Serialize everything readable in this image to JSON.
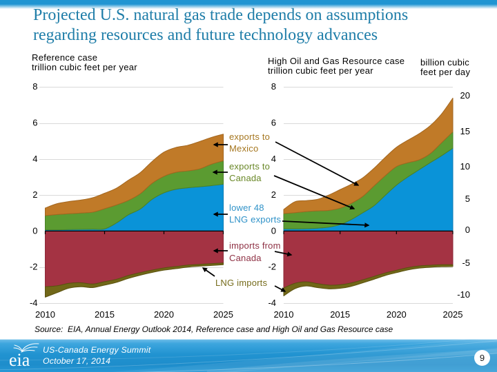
{
  "slide": {
    "title_line1": "Projected U.S. natural gas trade depends on assumptions",
    "title_line2": "regarding resources and future technology advances",
    "title_color": "#1e7da8",
    "top_bar_color": "#2095d2",
    "source_note": "Source:  EIA, Annual Energy Outlook 2014, Reference case and High Oil and Gas Resource case",
    "footer": {
      "logo_text": "eia",
      "event": "US-Canada Energy Summit",
      "date": "October 17, 2014",
      "page_number": "9",
      "background_color": "#1f90cf"
    }
  },
  "chart_data": [
    {
      "type": "area",
      "title": "Reference case",
      "unit_label": "trillion cubic feet per year",
      "x": [
        2010,
        2011,
        2012,
        2013,
        2014,
        2015,
        2016,
        2017,
        2018,
        2019,
        2020,
        2021,
        2022,
        2023,
        2024,
        2025
      ],
      "xticks": [
        2010,
        2015,
        2020,
        2025
      ],
      "yticks": [
        8,
        6,
        4,
        2,
        0,
        -2,
        -4
      ],
      "ylim": [
        -4,
        8
      ],
      "grid": true,
      "series": [
        {
          "name": "lower 48 LNG exports",
          "color": "#0a93d8",
          "stroke": "#0b7ab5",
          "values": [
            0.07,
            0.07,
            0.08,
            0.09,
            0.1,
            0.12,
            0.45,
            0.9,
            1.22,
            1.76,
            2.12,
            2.32,
            2.4,
            2.46,
            2.52,
            2.6
          ]
        },
        {
          "name": "exports to Canada",
          "color": "#5b9b31",
          "stroke": "#4a8126",
          "values": [
            0.79,
            0.85,
            0.88,
            0.91,
            0.95,
            1.12,
            1.0,
            0.8,
            0.85,
            0.89,
            0.92,
            0.94,
            0.94,
            0.99,
            1.19,
            1.3
          ]
        },
        {
          "name": "exports to Mexico",
          "color": "#c07a28",
          "stroke": "#a2661f",
          "values": [
            0.42,
            0.6,
            0.68,
            0.72,
            0.8,
            0.86,
            0.93,
            1.12,
            1.17,
            1.21,
            1.34,
            1.38,
            1.42,
            1.52,
            1.49,
            1.48
          ]
        },
        {
          "name": "imports from Canada",
          "color": "#a43343",
          "stroke": "#8c2a39",
          "values": [
            -3.09,
            -3.04,
            -2.9,
            -2.87,
            -2.94,
            -2.81,
            -2.68,
            -2.47,
            -2.31,
            -2.17,
            -2.05,
            -1.97,
            -1.89,
            -1.85,
            -1.81,
            -1.77
          ]
        },
        {
          "name": "LNG imports",
          "color": "#716718",
          "stroke": "#5a520f",
          "values": [
            -0.58,
            -0.38,
            -0.27,
            -0.22,
            -0.2,
            -0.19,
            -0.17,
            -0.16,
            -0.14,
            -0.13,
            -0.12,
            -0.12,
            -0.11,
            -0.1,
            -0.1,
            -0.1
          ]
        }
      ]
    },
    {
      "type": "area",
      "title": "High Oil and Gas Resource case",
      "unit_label": "trillion cubic feet per year",
      "right_axis": {
        "label_line1": "billion cubic",
        "label_line2": "feet per day",
        "ticks": [
          20,
          15,
          10,
          5,
          0,
          -5,
          -10
        ]
      },
      "x": [
        2010,
        2011,
        2012,
        2013,
        2014,
        2015,
        2016,
        2017,
        2018,
        2019,
        2020,
        2021,
        2022,
        2023,
        2024,
        2025
      ],
      "xticks": [
        2010,
        2015,
        2020,
        2025
      ],
      "yticks": [
        8,
        6,
        4,
        2,
        0,
        -2,
        -4
      ],
      "ylim": [
        -4,
        8
      ],
      "grid": true,
      "series": [
        {
          "name": "lower 48 LNG exports",
          "color": "#0a93d8",
          "stroke": "#0b7ab5",
          "values": [
            0.12,
            0.12,
            0.13,
            0.16,
            0.22,
            0.36,
            0.64,
            1.01,
            1.4,
            1.98,
            2.55,
            3.0,
            3.4,
            3.8,
            4.18,
            4.6
          ]
        },
        {
          "name": "exports to Canada",
          "color": "#5b9b31",
          "stroke": "#4a8126",
          "values": [
            0.85,
            0.9,
            0.95,
            0.96,
            0.93,
            0.91,
            0.9,
            0.91,
            1.1,
            1.09,
            1.03,
            0.79,
            0.55,
            0.5,
            0.72,
            0.91
          ]
        },
        {
          "name": "exports to Mexico",
          "color": "#c07a28",
          "stroke": "#a2661f",
          "values": [
            0.23,
            0.61,
            0.61,
            0.64,
            0.85,
            1.03,
            1.06,
            1.03,
            0.98,
            1.02,
            1.07,
            1.25,
            1.45,
            1.55,
            1.6,
            1.87
          ]
        },
        {
          "name": "imports from Canada",
          "color": "#a43343",
          "stroke": "#8c2a39",
          "values": [
            -3.16,
            -2.9,
            -2.82,
            -2.92,
            -3.0,
            -2.98,
            -2.88,
            -2.71,
            -2.52,
            -2.33,
            -2.18,
            -2.03,
            -1.94,
            -1.9,
            -1.87,
            -1.87
          ]
        },
        {
          "name": "LNG imports",
          "color": "#716718",
          "stroke": "#5a520f",
          "values": [
            -0.44,
            -0.3,
            -0.23,
            -0.22,
            -0.21,
            -0.2,
            -0.19,
            -0.17,
            -0.16,
            -0.14,
            -0.13,
            -0.13,
            -0.12,
            -0.11,
            -0.11,
            -0.1
          ]
        }
      ]
    }
  ],
  "annotations": [
    {
      "id": "mexico",
      "line1": "exports to",
      "line2": "Mexico",
      "color": "#a5761f"
    },
    {
      "id": "canada",
      "line1": "exports to",
      "line2": "Canada",
      "color": "#698727"
    },
    {
      "id": "lower48",
      "line1": "lower 48",
      "line2": "LNG exports",
      "color": "#2f92c8"
    },
    {
      "id": "imports",
      "line1": "imports from",
      "line2": "Canada",
      "color": "#8e3144"
    },
    {
      "id": "lng",
      "line1": "LNG imports",
      "line2": "",
      "color": "#766c1c"
    }
  ],
  "style": {
    "gridline_color": "#d9d9d9",
    "axis_color": "#000000",
    "arrow_color": "#000000"
  }
}
